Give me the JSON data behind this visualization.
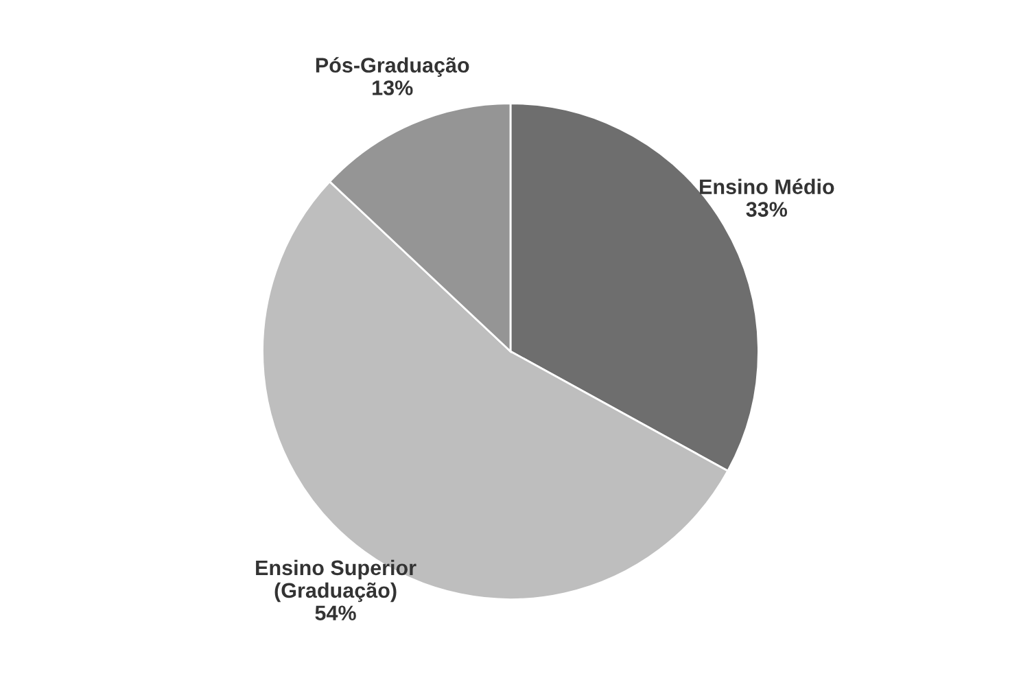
{
  "chart_data": {
    "type": "pie",
    "categories": [
      "Ensino Médio",
      "Ensino Superior\n(Graduação)",
      "Pós-Graduação"
    ],
    "values": [
      33,
      54,
      13
    ],
    "colors": [
      "#6e6e6e",
      "#bebebe",
      "#959595"
    ],
    "value_labels": [
      "33%",
      "54%",
      "13%"
    ]
  }
}
